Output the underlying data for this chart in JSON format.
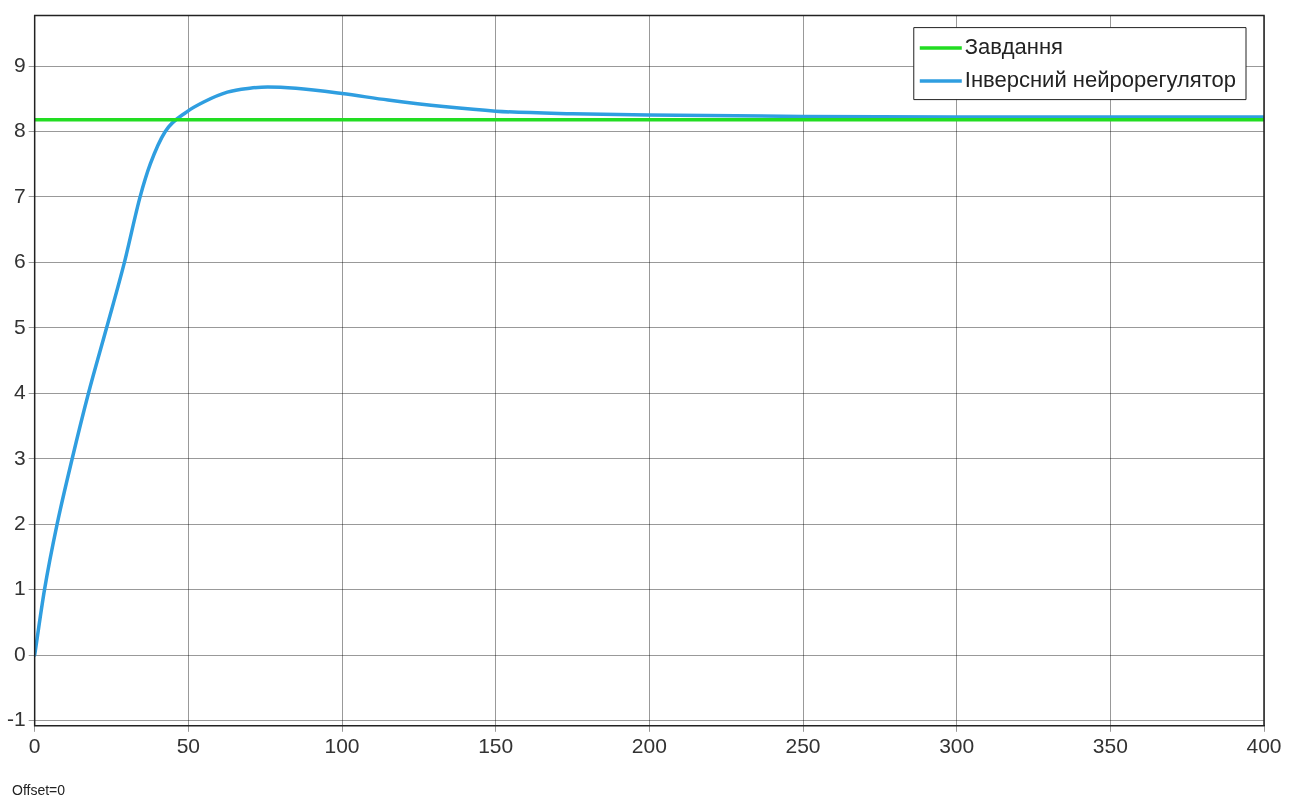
{
  "chart_data": {
    "type": "line",
    "xlim": [
      0,
      400
    ],
    "ylim": [
      -1.08,
      9.77
    ],
    "xticks": [
      0,
      50,
      100,
      150,
      200,
      250,
      300,
      350,
      400
    ],
    "yticks": [
      -1,
      0,
      1,
      2,
      3,
      4,
      5,
      6,
      7,
      8,
      9
    ],
    "grid": true,
    "legend": "top right",
    "marker": "none",
    "line_style": "solid",
    "annotations": [
      "Offset=0"
    ],
    "series": [
      {
        "name": "Завдання",
        "color": "#22dd22",
        "x": [
          0,
          400
        ],
        "values": [
          8.18,
          8.18
        ]
      },
      {
        "name": "Інверсний нейрорегулятор",
        "color": "#2f9ee0",
        "x": [
          0,
          3.2,
          7.3,
          12.2,
          17.5,
          23.4,
          29.2,
          34.3,
          37.6,
          42.5,
          49.5,
          55,
          62.7,
          70,
          75.8,
          85,
          100,
          115,
          133,
          150,
          175,
          200,
          250,
          300,
          350,
          400
        ],
        "values": [
          0,
          1,
          2,
          3,
          4,
          5,
          6,
          7,
          7.5,
          8,
          8.3,
          8.45,
          8.6,
          8.66,
          8.68,
          8.66,
          8.58,
          8.48,
          8.38,
          8.31,
          8.27,
          8.25,
          8.23,
          8.22,
          8.22,
          8.22
        ]
      }
    ]
  }
}
